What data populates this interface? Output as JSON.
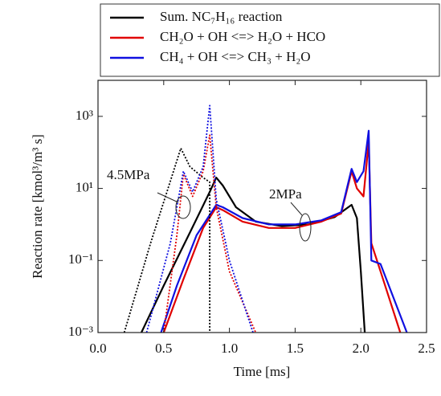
{
  "chart_data": {
    "type": "line",
    "xlabel": "Time [ms]",
    "ylabel": "Reaction rate [kmol³/m³ s]",
    "xlim": [
      0,
      2.5
    ],
    "xticks": [
      {
        "value": 0,
        "label": "0.0"
      },
      0.5,
      {
        "value": 1,
        "label": "1.0"
      },
      1.5,
      {
        "value": 2,
        "label": "2.0"
      },
      2.5
    ],
    "ylim": [
      0.001,
      10000
    ],
    "yscale": "log",
    "yticks": [
      {
        "value": 0.001,
        "label": "10⁻³"
      },
      {
        "value": 0.1,
        "label": "10⁻¹"
      },
      {
        "value": 10,
        "label": "10¹"
      },
      {
        "value": 1000,
        "label": "10³"
      }
    ],
    "legend": "top",
    "annotations": [
      "4.5MPa",
      "2MPa"
    ],
    "series": [
      {
        "name": "Sum. NC₇H₁₆ reaction",
        "color": "#000000",
        "dash": "solid",
        "x": [
          0.33,
          0.5,
          0.7,
          0.85,
          0.9,
          0.95,
          1.05,
          1.2,
          1.4,
          1.6,
          1.8,
          1.93,
          1.97,
          2.0,
          2.03
        ],
        "values": [
          0.001,
          0.02,
          0.6,
          8,
          20,
          12,
          3,
          1.2,
          0.9,
          1.0,
          1.6,
          3.5,
          1.5,
          0.05,
          0.001
        ]
      },
      {
        "name": "CH₂O + OH <=> H₂O + HCO",
        "color": "#e00000",
        "dash": "solid",
        "x": [
          0.5,
          0.65,
          0.8,
          0.9,
          0.95,
          1.1,
          1.3,
          1.5,
          1.7,
          1.85,
          1.93,
          1.97,
          2.02,
          2.06,
          2.08,
          2.15,
          2.3
        ],
        "values": [
          0.001,
          0.03,
          0.8,
          3,
          2.5,
          1.2,
          0.8,
          0.8,
          1.2,
          2,
          30,
          10,
          6,
          200,
          0.3,
          0.05,
          0.001
        ]
      },
      {
        "name": "CH₄ + OH <=> CH₃ + H₂O",
        "color": "#1010e0",
        "dash": "solid",
        "x": [
          0.48,
          0.6,
          0.75,
          0.9,
          0.95,
          1.1,
          1.3,
          1.5,
          1.7,
          1.85,
          1.93,
          1.97,
          2.02,
          2.06,
          2.08,
          2.15,
          2.35
        ],
        "values": [
          0.001,
          0.02,
          0.5,
          3.5,
          3,
          1.5,
          1,
          1,
          1.3,
          2.2,
          35,
          15,
          30,
          400,
          0.1,
          0.08,
          0.001
        ]
      },
      {
        "color": "#000000",
        "dash": "dotted",
        "x": [
          0.2,
          0.4,
          0.63,
          0.7,
          0.8,
          0.85,
          0.85
        ],
        "values": [
          0.001,
          0.3,
          130,
          40,
          20,
          15,
          0.001
        ]
      },
      {
        "color": "#e00000",
        "dash": "dotted",
        "x": [
          0.5,
          0.6,
          0.65,
          0.72,
          0.8,
          0.85,
          0.9,
          1.0,
          1.2
        ],
        "values": [
          0.001,
          0.5,
          25,
          6,
          30,
          300,
          3,
          0.05,
          0.001
        ]
      },
      {
        "color": "#1010e0",
        "dash": "dotted",
        "x": [
          0.37,
          0.55,
          0.65,
          0.72,
          0.8,
          0.85,
          0.9,
          1.0,
          1.18
        ],
        "values": [
          0.001,
          0.3,
          30,
          8,
          40,
          2000,
          5,
          0.1,
          0.001
        ]
      }
    ]
  }
}
